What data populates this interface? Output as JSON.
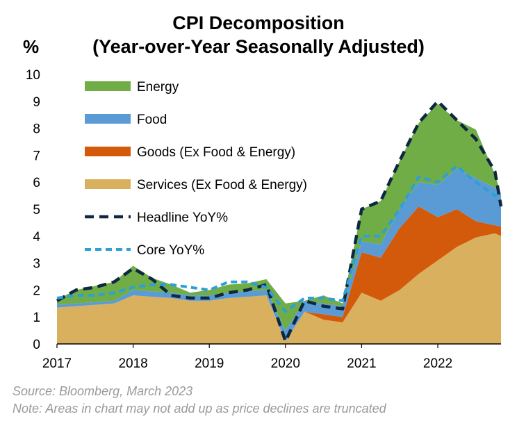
{
  "chart_data": {
    "type": "area",
    "title_line1": "CPI Decomposition",
    "title_line2": "(Year-over-Year Seasonally Adjusted)",
    "ylabel": "%",
    "ylim": [
      0,
      10
    ],
    "yticks": [
      "0",
      "1",
      "2",
      "3",
      "4",
      "5",
      "6",
      "7",
      "8",
      "9",
      "10"
    ],
    "xlim": [
      2017,
      2022.83
    ],
    "xticks": [
      "2017",
      "2018",
      "2019",
      "2020",
      "2021",
      "2022"
    ],
    "grid": false,
    "legend_position": "top-left",
    "x": [
      2017.0,
      2017.25,
      2017.5,
      2017.75,
      2018.0,
      2018.25,
      2018.5,
      2018.75,
      2019.0,
      2019.25,
      2019.5,
      2019.75,
      2020.0,
      2020.25,
      2020.5,
      2020.75,
      2021.0,
      2021.25,
      2021.5,
      2021.75,
      2022.0,
      2022.25,
      2022.5,
      2022.75,
      2022.83
    ],
    "stacked_series": [
      {
        "name": "Services (Ex Food & Energy)",
        "color": "#d9b15e",
        "values": [
          1.35,
          1.4,
          1.45,
          1.5,
          1.8,
          1.75,
          1.7,
          1.6,
          1.6,
          1.7,
          1.75,
          1.8,
          0.1,
          1.2,
          0.9,
          0.8,
          1.9,
          1.6,
          2.0,
          2.6,
          3.1,
          3.6,
          3.95,
          4.1,
          4.0
        ]
      },
      {
        "name": "Goods (Ex Food & Energy)",
        "color": "#d35a0a",
        "values": [
          0.0,
          0.0,
          0.0,
          0.0,
          0.0,
          0.0,
          0.0,
          0.0,
          0.0,
          0.0,
          0.0,
          0.0,
          0.0,
          0.0,
          0.2,
          0.2,
          1.5,
          1.6,
          2.3,
          2.5,
          1.6,
          1.4,
          0.6,
          0.3,
          0.35
        ]
      },
      {
        "name": "Food",
        "color": "#5b9bd5",
        "values": [
          0.1,
          0.1,
          0.1,
          0.1,
          0.2,
          0.2,
          0.2,
          0.2,
          0.2,
          0.2,
          0.2,
          0.2,
          0.4,
          0.4,
          0.4,
          0.4,
          0.4,
          0.5,
          0.7,
          0.9,
          1.2,
          1.5,
          1.6,
          1.4,
          1.2
        ]
      },
      {
        "name": "Energy",
        "color": "#70ad47",
        "values": [
          0.2,
          0.5,
          0.6,
          0.7,
          0.9,
          0.5,
          0.3,
          0.1,
          0.2,
          0.3,
          0.3,
          0.4,
          1.0,
          0.0,
          0.3,
          0.1,
          1.2,
          1.6,
          1.8,
          2.2,
          3.0,
          1.8,
          1.8,
          0.5,
          0.0
        ]
      }
    ],
    "line_series": [
      {
        "name": "Headline YoY%",
        "color": "#0e2841",
        "values": [
          1.6,
          2.0,
          2.1,
          2.3,
          2.8,
          2.4,
          1.8,
          1.7,
          1.7,
          1.9,
          2.0,
          2.2,
          0.1,
          1.6,
          1.4,
          1.3,
          5.0,
          5.3,
          6.8,
          8.2,
          9.0,
          8.3,
          7.6,
          6.4,
          5.1
        ]
      },
      {
        "name": "Core YoY%",
        "color": "#2e9fd8",
        "values": [
          1.7,
          1.8,
          1.8,
          1.9,
          2.1,
          2.2,
          2.2,
          2.1,
          2.0,
          2.3,
          2.3,
          2.1,
          1.2,
          1.7,
          1.7,
          1.6,
          4.0,
          4.0,
          5.0,
          6.2,
          6.0,
          6.6,
          6.0,
          5.5,
          5.6
        ]
      }
    ],
    "legend": [
      "Energy",
      "Food",
      "Goods (Ex Food & Energy)",
      "Services (Ex Food & Energy)",
      "Headline YoY%",
      "Core YoY%"
    ]
  },
  "footer": {
    "source": "Source: Bloomberg, March 2023",
    "note": "Note: Areas in chart may not add up as price declines are truncated"
  }
}
